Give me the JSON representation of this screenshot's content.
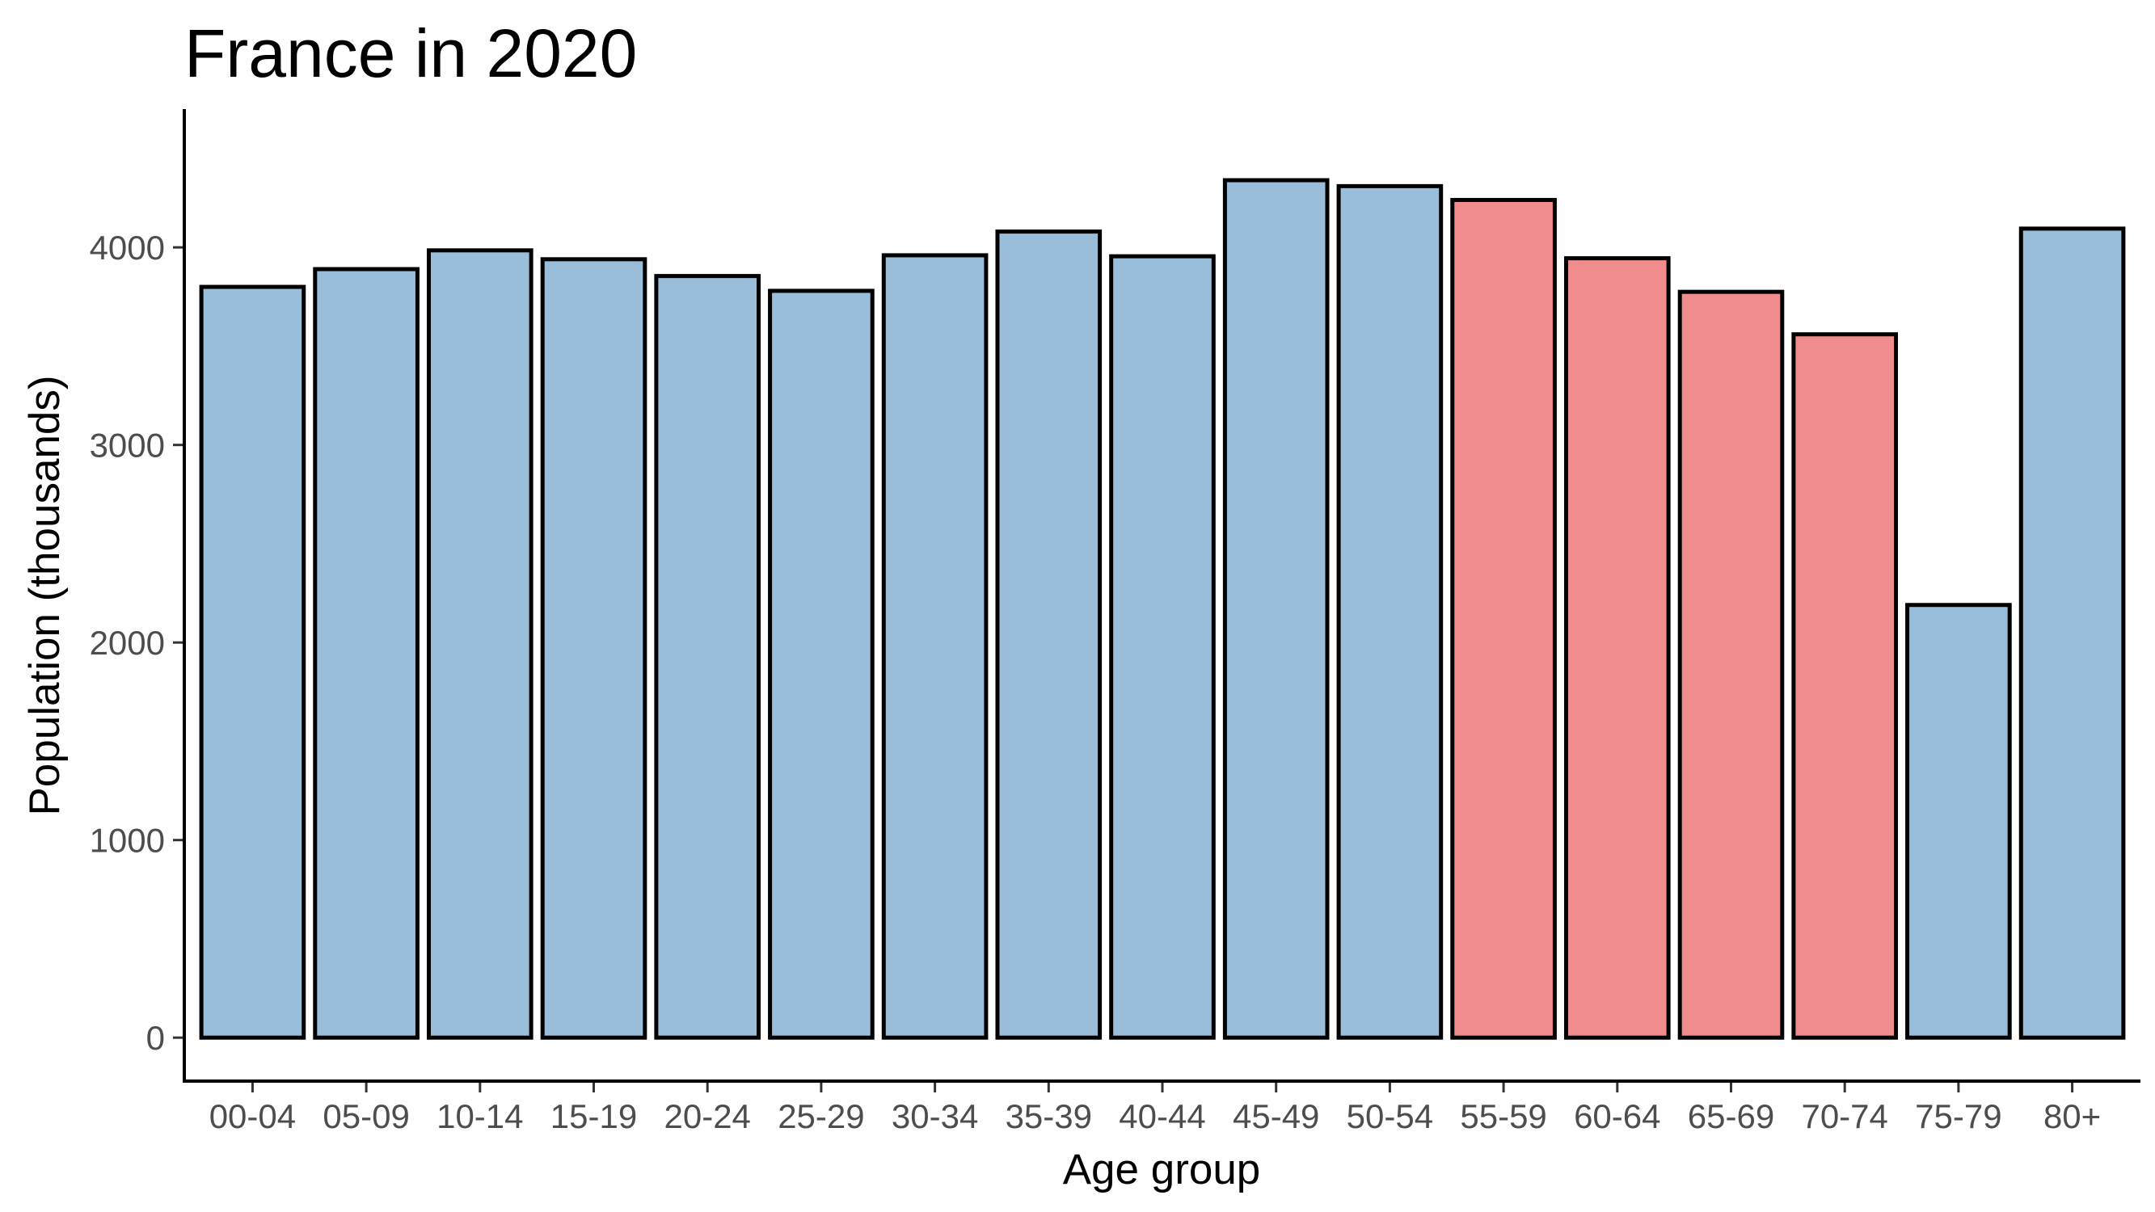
{
  "chart_data": {
    "type": "bar",
    "title": "France in 2020",
    "xlabel": "Age group",
    "ylabel": "Population (thousands)",
    "categories": [
      "00-04",
      "05-09",
      "10-14",
      "15-19",
      "20-24",
      "25-29",
      "30-34",
      "35-39",
      "40-44",
      "45-49",
      "50-54",
      "55-59",
      "60-64",
      "65-69",
      "70-74",
      "75-79",
      "80+"
    ],
    "values": [
      3800,
      3890,
      3985,
      3940,
      3855,
      3780,
      3960,
      4080,
      3955,
      4340,
      4310,
      4240,
      3945,
      3775,
      3560,
      2190,
      4095
    ],
    "highlighted": [
      false,
      false,
      false,
      false,
      false,
      false,
      false,
      false,
      false,
      false,
      false,
      true,
      true,
      true,
      true,
      false,
      false
    ],
    "colors": {
      "default": "#9ABDDA",
      "highlight": "#F08C8C",
      "outline": "#000000"
    },
    "yticks": [
      0,
      1000,
      2000,
      3000,
      4000
    ],
    "ylim": [
      -220,
      4700
    ],
    "grid": false,
    "legend": "none"
  }
}
